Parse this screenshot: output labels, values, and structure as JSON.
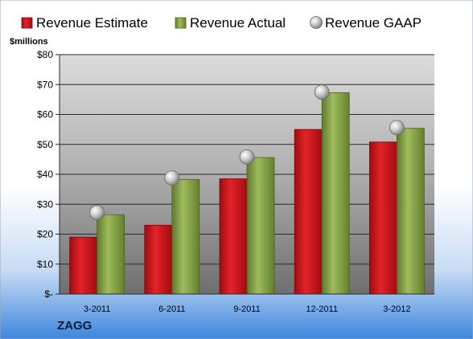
{
  "company": "ZAGG",
  "chart_data": {
    "type": "bar",
    "unit_label": "$millions",
    "categories": [
      "3-2011",
      "6-2011",
      "9-2011",
      "12-2011",
      "3-2012"
    ],
    "series": [
      {
        "name": "Revenue Estimate",
        "kind": "bar",
        "color": "#d8141a",
        "values": [
          19,
          23,
          38.5,
          55,
          50.8
        ]
      },
      {
        "name": "Revenue Actual",
        "kind": "bar",
        "color": "#8aa64a",
        "values": [
          26.5,
          38.3,
          45.6,
          67.3,
          55.4
        ]
      },
      {
        "name": "Revenue GAAP",
        "kind": "marker",
        "color": "#b8b8b8",
        "values": [
          27.2,
          38.8,
          45.8,
          67.5,
          55.6
        ]
      }
    ],
    "ylim": [
      0,
      80
    ],
    "yticks": [
      0,
      10,
      20,
      30,
      40,
      50,
      60,
      70,
      80
    ],
    "ytick_labels": [
      "$-",
      "$10",
      "$20",
      "$30",
      "$40",
      "$50",
      "$60",
      "$70",
      "$80"
    ],
    "grid": true,
    "legend_position": "top"
  }
}
